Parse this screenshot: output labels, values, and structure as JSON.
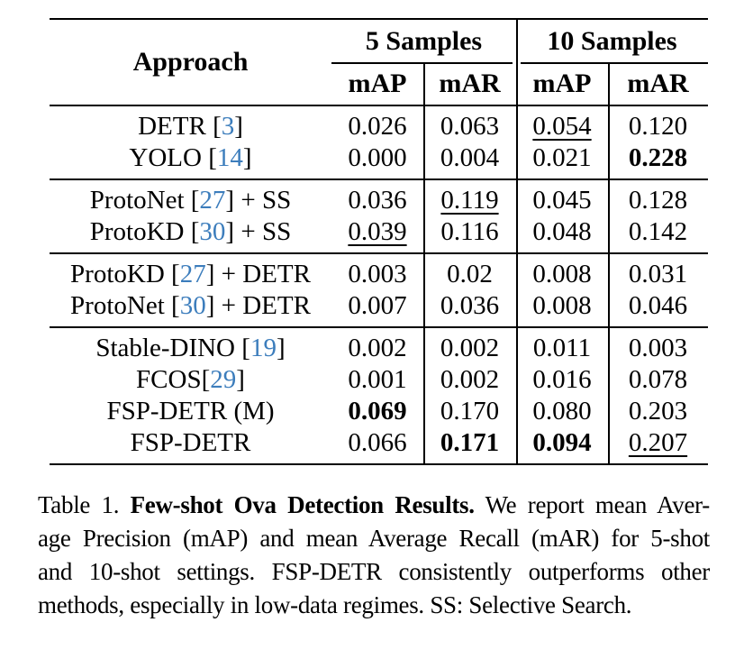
{
  "colors": {
    "citation_blue": "#3c7dbc",
    "rule_black": "#000000"
  },
  "table": {
    "header": {
      "approach": "Approach",
      "group1": "5 Samples",
      "group2": "10 Samples",
      "sub": [
        "mAP",
        "mAR",
        "mAP",
        "mAR"
      ]
    },
    "groups": [
      {
        "rows": [
          {
            "label": {
              "pre": "DETR ",
              "cite": "3",
              "post": ""
            },
            "cells": [
              {
                "t": "0.026"
              },
              {
                "t": "0.063"
              },
              {
                "t": "0.054",
                "underline": true
              },
              {
                "t": "0.120"
              }
            ]
          },
          {
            "label": {
              "pre": "YOLO ",
              "cite": "14",
              "post": ""
            },
            "cells": [
              {
                "t": "0.000"
              },
              {
                "t": "0.004"
              },
              {
                "t": "0.021"
              },
              {
                "t": "0.228",
                "bold": true
              }
            ]
          }
        ]
      },
      {
        "rows": [
          {
            "label": {
              "pre": "ProtoNet ",
              "cite": "27",
              "post": " + SS"
            },
            "cells": [
              {
                "t": "0.036"
              },
              {
                "t": "0.119",
                "underline": true
              },
              {
                "t": "0.045"
              },
              {
                "t": "0.128"
              }
            ]
          },
          {
            "label": {
              "pre": "ProtoKD ",
              "cite": "30",
              "post": " + SS"
            },
            "cells": [
              {
                "t": "0.039",
                "underline": true
              },
              {
                "t": "0.116"
              },
              {
                "t": "0.048"
              },
              {
                "t": "0.142"
              }
            ]
          }
        ]
      },
      {
        "rows": [
          {
            "label": {
              "pre": "ProtoKD ",
              "cite": "27",
              "post": " + DETR"
            },
            "cells": [
              {
                "t": "0.003"
              },
              {
                "t": "0.02"
              },
              {
                "t": "0.008"
              },
              {
                "t": "0.031"
              }
            ]
          },
          {
            "label": {
              "pre": "ProtoNet ",
              "cite": "30",
              "post": " + DETR"
            },
            "cells": [
              {
                "t": "0.007"
              },
              {
                "t": "0.036"
              },
              {
                "t": "0.008"
              },
              {
                "t": "0.046"
              }
            ]
          }
        ]
      },
      {
        "rows": [
          {
            "label": {
              "pre": "Stable-DINO ",
              "cite": "19",
              "post": ""
            },
            "cells": [
              {
                "t": "0.002"
              },
              {
                "t": "0.002"
              },
              {
                "t": "0.011"
              },
              {
                "t": "0.003"
              }
            ]
          },
          {
            "label": {
              "pre": "FCOS",
              "cite": "29",
              "post": ""
            },
            "cells": [
              {
                "t": "0.001"
              },
              {
                "t": "0.002"
              },
              {
                "t": "0.016"
              },
              {
                "t": "0.078"
              }
            ]
          },
          {
            "label": {
              "pre": "FSP-DETR (M)",
              "cite": null,
              "post": ""
            },
            "cells": [
              {
                "t": "0.069",
                "bold": true
              },
              {
                "t": "0.170"
              },
              {
                "t": "0.080"
              },
              {
                "t": "0.203"
              }
            ]
          },
          {
            "label": {
              "pre": "FSP-DETR",
              "cite": null,
              "post": ""
            },
            "cells": [
              {
                "t": "0.066"
              },
              {
                "t": "0.171",
                "bold": true
              },
              {
                "t": "0.094",
                "bold": true
              },
              {
                "t": "0.207",
                "underline": true
              }
            ]
          }
        ]
      }
    ]
  },
  "caption": {
    "lines": [
      {
        "justify": true,
        "segments": [
          {
            "text": "Table 1. "
          },
          {
            "text": "Few-shot Ova Detection Results.",
            "bold": true
          },
          {
            "text": " We report mean Aver-"
          }
        ]
      },
      {
        "justify": true,
        "segments": [
          {
            "text": "age Precision (mAP) and mean Average Recall (mAR) for 5-shot"
          }
        ]
      },
      {
        "justify": true,
        "segments": [
          {
            "text": "and 10-shot settings. FSP-DETR consistently outperforms other"
          }
        ]
      },
      {
        "justify": false,
        "segments": [
          {
            "text": "methods, especially in low-data regimes. SS: Selective Search."
          }
        ]
      }
    ]
  }
}
